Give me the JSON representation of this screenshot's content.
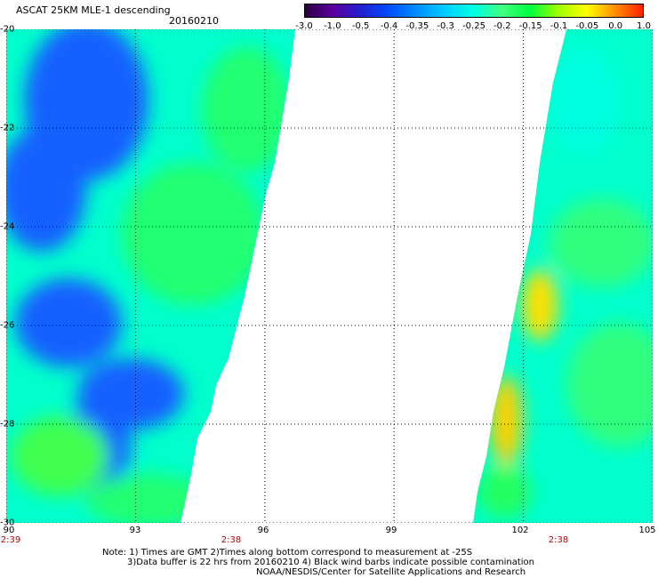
{
  "header": {
    "title": "ASCAT 25KM MLE-1 descending",
    "date": "20160210"
  },
  "colorbar": {
    "labels": [
      "-3.0",
      "-1.0",
      "-0.5",
      "-0.4",
      "-0.35",
      "-0.3",
      "-0.25",
      "-0.2",
      "-0.15",
      "-0.1",
      "-0.05",
      "0.0",
      "1.0"
    ],
    "colors": [
      "#2a0040",
      "#5a00a0",
      "#2020d0",
      "#0050ff",
      "#0090ff",
      "#00d0ff",
      "#00ffe0",
      "#40ff80",
      "#00ff40",
      "#a0ff00",
      "#ffff00",
      "#ff9000",
      "#ff2000"
    ]
  },
  "map": {
    "lat_labels": [
      "-20",
      "-22",
      "-24",
      "-26",
      "-28",
      "-30"
    ],
    "lon_labels": [
      "90",
      "93",
      "96",
      "99",
      "102",
      "105"
    ],
    "time_labels": [
      "2:39",
      "2:38",
      "2:38"
    ],
    "lat_range": [
      -30,
      -20
    ],
    "lon_range": [
      90,
      105
    ]
  },
  "notes": {
    "line1": "Note: 1) Times are GMT 2)Times along bottom correspond to measurement at -25S",
    "line2": "3)Data buffer is 22 hrs from 20160210 4) Black wind barbs indicate possible contamination",
    "line3": "NOAA/NESDIS/Center for Satellite Applications and Research"
  }
}
